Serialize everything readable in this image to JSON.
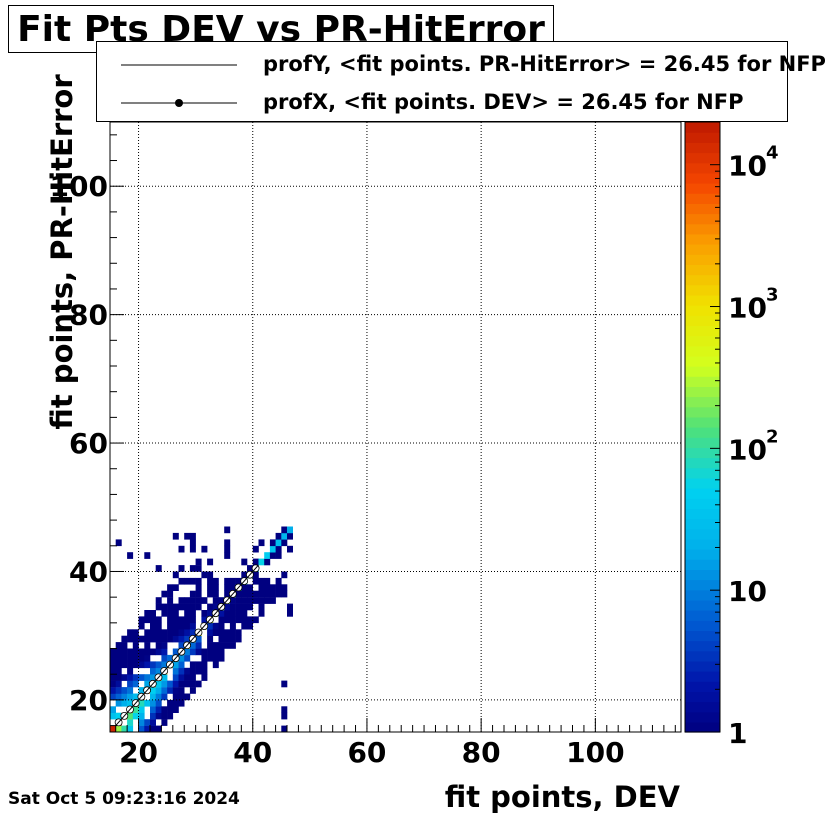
{
  "chart_data": {
    "type": "heatmap",
    "title": "Fit Pts DEV vs PR-HitError",
    "xlabel": "fit points, DEV",
    "ylabel": "fit points,  PR-HitError",
    "xlim": [
      15,
      115
    ],
    "ylim": [
      15,
      110
    ],
    "x_ticks": [
      20,
      40,
      60,
      80,
      100
    ],
    "y_ticks": [
      20,
      40,
      60,
      80,
      100
    ],
    "grid": true,
    "colorbar": {
      "scale": "log",
      "range": [
        1,
        20000
      ],
      "ticks": [
        {
          "value": 1,
          "label": "1"
        },
        {
          "value": 10,
          "label": "10"
        },
        {
          "value": 100,
          "label": "10",
          "exp": "2"
        },
        {
          "value": 1000,
          "label": "10",
          "exp": "3"
        },
        {
          "value": 10000,
          "label": "10",
          "exp": "4"
        }
      ]
    },
    "legend_position": "top",
    "legend": [
      {
        "name": "profY, <fit points. PR-HitError> =   26.45 for NFP",
        "marker": "line"
      },
      {
        "name": "profX, <fit points. DEV> =   26.45 for NFP",
        "marker": "line-circle"
      }
    ],
    "distribution": {
      "diagonal_range": [
        15,
        46
      ],
      "peak_count": 20000,
      "spread_lower_triangle_max_dx": 8,
      "spread_upper_triangle_max_dy": 12
    }
  },
  "datestamp": "Sat Oct  5 09:23:16 2024"
}
